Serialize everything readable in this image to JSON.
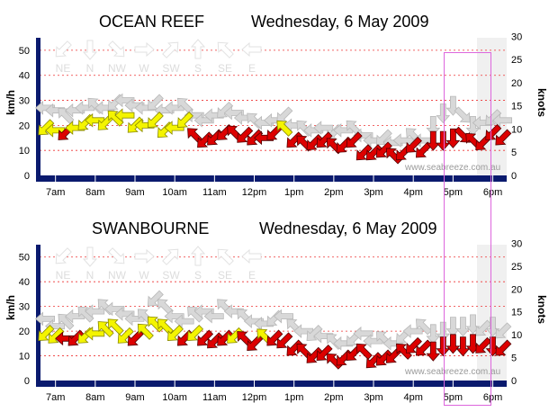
{
  "colors": {
    "strong": "#dd0000",
    "moderate": "#f4f400",
    "light": "#d8d8d8",
    "grid": "#ee3333",
    "axis": "#0a1a6e",
    "highlight": "#dd66dd"
  },
  "charts": [
    {
      "station": "OCEAN REEF",
      "date": "Wednesday, 6 May 2009",
      "watermark": "www.seabreeze.com.au",
      "left_axis_label": "km/h",
      "right_axis_label": "knots",
      "direction_labels": [
        "NE",
        "N",
        "NW",
        "W",
        "SW",
        "S",
        "SE",
        "E"
      ],
      "direction_arrow_icons": [
        "arrow-sw-icon",
        "arrow-s-icon",
        "arrow-se-icon",
        "arrow-e-icon",
        "arrow-ne-icon",
        "arrow-n-icon",
        "arrow-nw-icon",
        "arrow-w-icon"
      ]
    },
    {
      "station": "SWANBOURNE",
      "date": "Wednesday, 6 May 2009",
      "watermark": "www.seabreeze.com.au",
      "left_axis_label": "km/h",
      "right_axis_label": "knots",
      "direction_labels": [
        "NE",
        "N",
        "NW",
        "W",
        "SW",
        "S",
        "SE",
        "E"
      ],
      "direction_arrow_icons": [
        "arrow-sw-icon",
        "arrow-s-icon",
        "arrow-se-icon",
        "arrow-e-icon",
        "arrow-ne-icon",
        "arrow-n-icon",
        "arrow-nw-icon",
        "arrow-w-icon"
      ]
    }
  ],
  "chart_data": [
    {
      "type": "scatter",
      "title": "OCEAN REEF  Wednesday, 6 May 2009",
      "xlabel": "",
      "ylabel": "km/h",
      "y2label": "knots",
      "x_ticks": [
        "7am",
        "8am",
        "9am",
        "10am",
        "11am",
        "12pm",
        "1pm",
        "2pm",
        "3pm",
        "4pm",
        "5pm",
        "6pm"
      ],
      "x_range_hours": [
        6.6,
        18.35
      ],
      "y_ticks": [
        0,
        10,
        20,
        30,
        40,
        50
      ],
      "ylim": [
        0,
        55
      ],
      "y2_ticks": [
        0,
        5,
        10,
        15,
        20,
        25,
        30
      ],
      "y2lim": [
        0,
        29.7
      ],
      "grid": true,
      "series": [
        {
          "name": "gust",
          "unit": "km/h",
          "time": [
            6.75,
            7.0,
            7.25,
            7.5,
            7.75,
            8.0,
            8.25,
            8.5,
            8.75,
            9.0,
            9.25,
            9.5,
            9.75,
            10.0,
            10.25,
            10.5,
            10.75,
            11.0,
            11.25,
            11.5,
            11.75,
            12.0,
            12.25,
            12.5,
            12.75,
            13.0,
            13.25,
            13.5,
            13.75,
            14.0,
            14.25,
            14.5,
            14.75,
            15.0,
            15.25,
            15.5,
            15.75,
            16.0,
            16.25,
            16.5,
            16.75,
            17.0,
            17.25,
            17.5,
            17.75,
            18.0,
            18.25
          ],
          "value": [
            27,
            26,
            24,
            26,
            27,
            28,
            27,
            29,
            30,
            28,
            27,
            29,
            26,
            27,
            28,
            24,
            22,
            24,
            26,
            25,
            23,
            22,
            21,
            22,
            24,
            20,
            19,
            18,
            19,
            17,
            18,
            19,
            16,
            14,
            15,
            13,
            14,
            16,
            14,
            20,
            25,
            28,
            24,
            20,
            21,
            23,
            22
          ],
          "direction": [
            "W",
            "W",
            "NW",
            "W",
            "W",
            "NW",
            "W",
            "SW",
            "W",
            "W",
            "W",
            "SW",
            "W",
            "W",
            "NW",
            "W",
            "W",
            "W",
            "SW",
            "W",
            "W",
            "NW",
            "W",
            "W",
            "SW",
            "W",
            "NW",
            "W",
            "W",
            "SW",
            "W",
            "NW",
            "W",
            "W",
            "SW",
            "W",
            "W",
            "NW",
            "W",
            "S",
            "S",
            "S",
            "SE",
            "S",
            "W",
            "SW",
            "W"
          ]
        },
        {
          "name": "wind",
          "unit": "km/h",
          "time": [
            6.75,
            7.0,
            7.25,
            7.5,
            7.75,
            8.0,
            8.25,
            8.5,
            8.75,
            9.0,
            9.25,
            9.5,
            9.75,
            10.0,
            10.25,
            10.5,
            10.75,
            11.0,
            11.25,
            11.5,
            11.75,
            12.0,
            12.25,
            12.5,
            12.75,
            13.0,
            13.25,
            13.5,
            13.75,
            14.0,
            14.25,
            14.5,
            14.75,
            15.0,
            15.25,
            15.5,
            15.75,
            16.0,
            16.25,
            16.5,
            16.75,
            17.0,
            17.25,
            17.5,
            17.75,
            18.0,
            18.25
          ],
          "value": [
            19,
            18,
            17,
            19,
            21,
            22,
            21,
            23,
            24,
            20,
            20,
            22,
            18,
            19,
            22,
            16,
            14,
            15,
            17,
            17,
            16,
            15,
            15,
            17,
            19,
            14,
            13,
            13,
            14,
            12,
            12,
            14,
            9,
            9,
            10,
            8,
            9,
            12,
            10,
            14,
            14,
            15,
            16,
            14,
            13,
            17,
            15
          ],
          "direction": [
            "SW",
            "W",
            "SW",
            "W",
            "SW",
            "W",
            "SW",
            "NW",
            "W",
            "SW",
            "W",
            "SW",
            "SW",
            "W",
            "SW",
            "NW",
            "SW",
            "SW",
            "SW",
            "NW",
            "SW",
            "SW",
            "W",
            "SW",
            "NW",
            "SW",
            "NW",
            "SW",
            "SW",
            "NW",
            "SW",
            "SW",
            "SW",
            "SW",
            "SW",
            "NW",
            "SW",
            "SW",
            "SW",
            "S",
            "S",
            "S",
            "SE",
            "NW",
            "SW",
            "SW",
            "SW"
          ]
        }
      ]
    },
    {
      "type": "scatter",
      "title": "SWANBOURNE  Wednesday, 6 May 2009",
      "xlabel": "",
      "ylabel": "km/h",
      "y2label": "knots",
      "x_ticks": [
        "7am",
        "8am",
        "9am",
        "10am",
        "11am",
        "12pm",
        "1pm",
        "2pm",
        "3pm",
        "4pm",
        "5pm",
        "6pm"
      ],
      "x_range_hours": [
        6.6,
        18.35
      ],
      "y_ticks": [
        0,
        10,
        20,
        30,
        40,
        50
      ],
      "ylim": [
        0,
        55
      ],
      "y2_ticks": [
        0,
        5,
        10,
        15,
        20,
        25,
        30
      ],
      "y2lim": [
        0,
        29.7
      ],
      "grid": true,
      "series": [
        {
          "name": "gust",
          "unit": "km/h",
          "time": [
            6.75,
            7.0,
            7.25,
            7.5,
            7.75,
            8.0,
            8.25,
            8.5,
            8.75,
            9.0,
            9.25,
            9.5,
            9.75,
            10.0,
            10.25,
            10.5,
            10.75,
            11.0,
            11.25,
            11.5,
            11.75,
            12.0,
            12.25,
            12.5,
            12.75,
            13.0,
            13.25,
            13.5,
            13.75,
            14.0,
            14.25,
            14.5,
            14.75,
            15.0,
            15.25,
            15.5,
            15.75,
            16.0,
            16.25,
            16.5,
            16.75,
            17.0,
            17.25,
            17.5,
            17.75,
            18.0,
            18.25
          ],
          "value": [
            25,
            22,
            24,
            26,
            27,
            28,
            30,
            29,
            27,
            25,
            26,
            33,
            30,
            26,
            24,
            27,
            28,
            26,
            30,
            28,
            26,
            24,
            23,
            25,
            26,
            22,
            20,
            19,
            18,
            16,
            15,
            17,
            19,
            16,
            17,
            15,
            18,
            20,
            22,
            19,
            20,
            22,
            22,
            23,
            21,
            22,
            20
          ],
          "direction": [
            "W",
            "W",
            "NW",
            "W",
            "NW",
            "W",
            "NW",
            "W",
            "W",
            "W",
            "NW",
            "SW",
            "NW",
            "W",
            "W",
            "NW",
            "W",
            "W",
            "NW",
            "W",
            "NW",
            "W",
            "W",
            "SW",
            "W",
            "NW",
            "W",
            "SW",
            "W",
            "NW",
            "W",
            "SW",
            "W",
            "W",
            "NW",
            "W",
            "SW",
            "W",
            "NW",
            "S",
            "S",
            "S",
            "S",
            "S",
            "SW",
            "S",
            "SW"
          ]
        },
        {
          "name": "wind",
          "unit": "km/h",
          "time": [
            6.75,
            7.0,
            7.25,
            7.5,
            7.75,
            8.0,
            8.25,
            8.5,
            8.75,
            9.0,
            9.25,
            9.5,
            9.75,
            10.0,
            10.25,
            10.5,
            10.75,
            11.0,
            11.25,
            11.5,
            11.75,
            12.0,
            12.25,
            12.5,
            12.75,
            13.0,
            13.25,
            13.5,
            13.75,
            14.0,
            14.25,
            14.5,
            14.75,
            15.0,
            15.25,
            15.5,
            15.75,
            16.0,
            16.25,
            16.5,
            16.75,
            17.0,
            17.25,
            17.5,
            17.75,
            18.0,
            18.25
          ],
          "value": [
            19,
            18,
            17,
            17,
            18,
            19,
            21,
            22,
            18,
            17,
            20,
            23,
            22,
            19,
            17,
            19,
            17,
            16,
            17,
            18,
            17,
            15,
            18,
            17,
            16,
            13,
            12,
            10,
            11,
            8,
            9,
            11,
            12,
            8,
            9,
            10,
            12,
            14,
            13,
            12,
            14,
            15,
            14,
            15,
            14,
            14,
            13
          ],
          "direction": [
            "SW",
            "SW",
            "W",
            "SW",
            "SW",
            "W",
            "NW",
            "NW",
            "SW",
            "SW",
            "NW",
            "NW",
            "NW",
            "SW",
            "SW",
            "SW",
            "SW",
            "SW",
            "SW",
            "SW",
            "NW",
            "SW",
            "NW",
            "SW",
            "SW",
            "SW",
            "NW",
            "SW",
            "SW",
            "NW",
            "SW",
            "SW",
            "NW",
            "SW",
            "SW",
            "SW",
            "NW",
            "SW",
            "SW",
            "S",
            "S",
            "S",
            "S",
            "S",
            "SW",
            "S",
            "SW"
          ]
        }
      ]
    }
  ]
}
